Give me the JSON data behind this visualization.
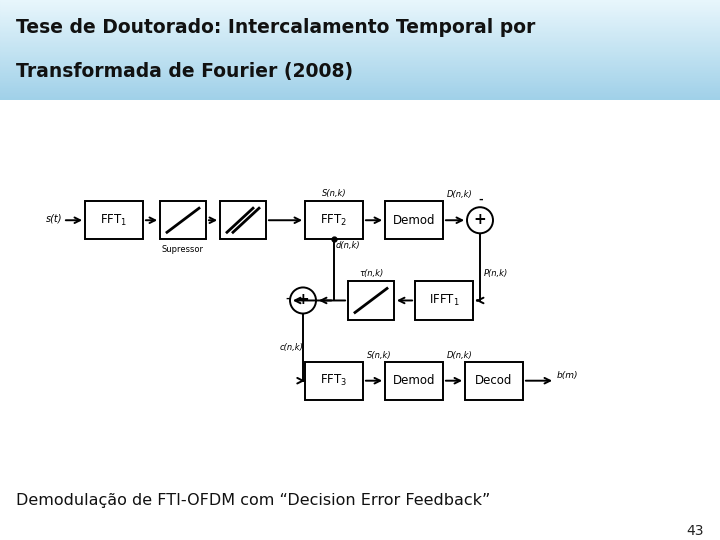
{
  "title_line1": "Tese de Doutorado: Intercalamento Temporal por",
  "title_line2": "Transformada de Fourier (2008)",
  "subtitle": "Demodulação de FTI-OFDM com “Decision Error Feedback”",
  "page_number": "43",
  "bg_color": "#ffffff",
  "header_grad_top": "#a8d8ea",
  "header_grad_bot": "#d0edf7"
}
